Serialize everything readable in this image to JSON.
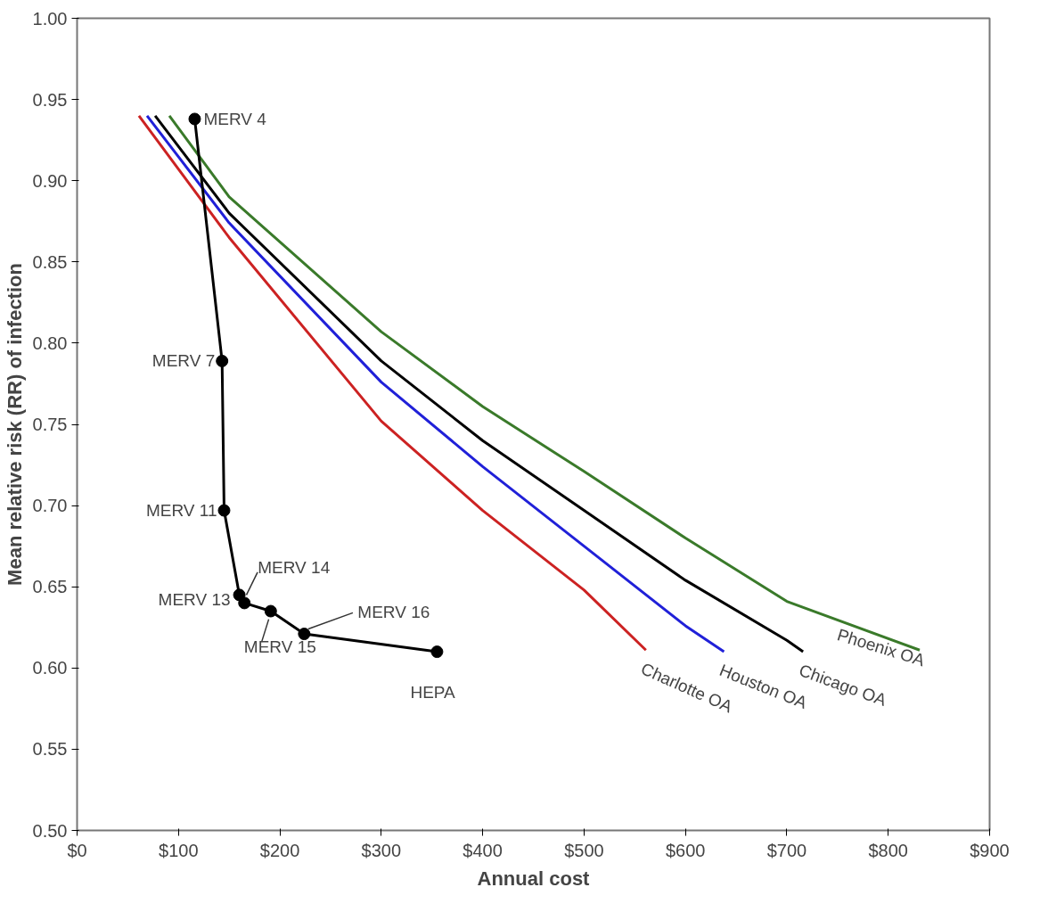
{
  "chart_data": {
    "type": "line",
    "xlabel": "Annual cost",
    "ylabel": "Mean relative risk (RR) of infection",
    "xlim": [
      0,
      900
    ],
    "ylim": [
      0.5,
      1.0
    ],
    "xticks": [
      {
        "value": 0,
        "label": "$0"
      },
      {
        "value": 100,
        "label": "$100"
      },
      {
        "value": 200,
        "label": "$200"
      },
      {
        "value": 300,
        "label": "$300"
      },
      {
        "value": 400,
        "label": "$400"
      },
      {
        "value": 500,
        "label": "$500"
      },
      {
        "value": 600,
        "label": "$600"
      },
      {
        "value": 700,
        "label": "$700"
      },
      {
        "value": 800,
        "label": "$800"
      },
      {
        "value": 900,
        "label": "$900"
      }
    ],
    "yticks": [
      {
        "value": 0.5,
        "label": "0.50"
      },
      {
        "value": 0.55,
        "label": "0.55"
      },
      {
        "value": 0.6,
        "label": "0.60"
      },
      {
        "value": 0.65,
        "label": "0.65"
      },
      {
        "value": 0.7,
        "label": "0.70"
      },
      {
        "value": 0.75,
        "label": "0.75"
      },
      {
        "value": 0.8,
        "label": "0.80"
      },
      {
        "value": 0.85,
        "label": "0.85"
      },
      {
        "value": 0.9,
        "label": "0.90"
      },
      {
        "value": 0.95,
        "label": "0.95"
      },
      {
        "value": 1.0,
        "label": "1.00"
      }
    ],
    "grid": false,
    "line_style": "solid",
    "series": [
      {
        "name": "Charlotte OA",
        "color": "#cc2222",
        "marker": "none",
        "x": [
          61,
          150,
          300,
          400,
          500,
          561
        ],
        "values": [
          0.94,
          0.865,
          0.752,
          0.697,
          0.648,
          0.611
        ]
      },
      {
        "name": "Houston OA",
        "color": "#2020d8",
        "marker": "none",
        "x": [
          69,
          150,
          300,
          400,
          500,
          600,
          638
        ],
        "values": [
          0.94,
          0.874,
          0.776,
          0.724,
          0.675,
          0.626,
          0.61
        ]
      },
      {
        "name": "Chicago OA",
        "color": "#000000",
        "marker": "none",
        "x": [
          77,
          150,
          300,
          400,
          500,
          600,
          700,
          716
        ],
        "values": [
          0.94,
          0.88,
          0.789,
          0.74,
          0.697,
          0.654,
          0.617,
          0.61
        ]
      },
      {
        "name": "Phoenix OA",
        "color": "#3a7a2a",
        "marker": "none",
        "x": [
          91,
          150,
          300,
          400,
          500,
          600,
          700,
          831
        ],
        "values": [
          0.94,
          0.89,
          0.807,
          0.761,
          0.721,
          0.68,
          0.641,
          0.611
        ]
      },
      {
        "color": "#000000",
        "marker": "circle",
        "x": [
          116,
          143,
          145,
          160,
          165,
          191,
          224,
          355
        ],
        "values": [
          0.938,
          0.789,
          0.697,
          0.645,
          0.64,
          0.635,
          0.621,
          0.61
        ]
      }
    ],
    "annotations": [
      {
        "text": "MERV 4",
        "x": 116,
        "y": 0.938
      },
      {
        "text": "MERV 7",
        "x": 143,
        "y": 0.789
      },
      {
        "text": "MERV 11",
        "x": 145,
        "y": 0.697
      },
      {
        "text": "MERV 14",
        "x": 165,
        "y": 0.64
      },
      {
        "text": "MERV 13",
        "x": 160,
        "y": 0.645
      },
      {
        "text": "MERV 15",
        "x": 191,
        "y": 0.635
      },
      {
        "text": "MERV 16",
        "x": 224,
        "y": 0.621
      },
      {
        "text": "HEPA",
        "x": 355,
        "y": 0.61
      }
    ]
  }
}
